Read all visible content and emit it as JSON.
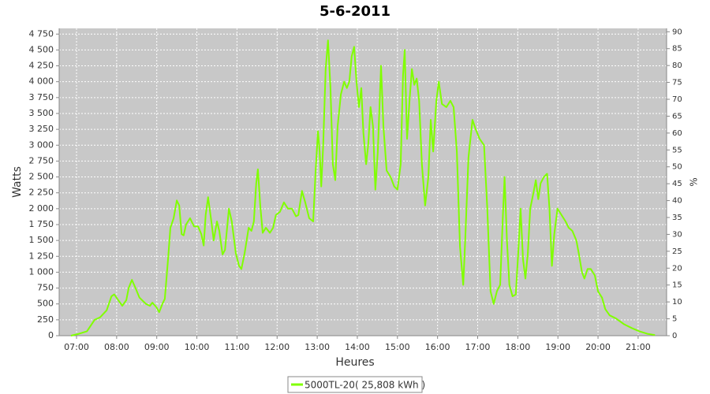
{
  "chart_data": {
    "type": "line",
    "title": "5-6-2011",
    "x_label": "Heures",
    "y_label": "Watts",
    "y2_label": "%",
    "grid": true,
    "legend": "bottom",
    "xlim": [
      6.567,
      21.71
    ],
    "xticks": [
      {
        "value": 7,
        "label": "07:00"
      },
      {
        "value": 8,
        "label": "08:00"
      },
      {
        "value": 9,
        "label": "09:00"
      },
      {
        "value": 10,
        "label": "10:00"
      },
      {
        "value": 11,
        "label": "11:00"
      },
      {
        "value": 12,
        "label": "12:00"
      },
      {
        "value": 13,
        "label": "13:00"
      },
      {
        "value": 14,
        "label": "14:00"
      },
      {
        "value": 15,
        "label": "15:00"
      },
      {
        "value": 16,
        "label": "16:00"
      },
      {
        "value": 17,
        "label": "17:00"
      },
      {
        "value": 18,
        "label": "18:00"
      },
      {
        "value": 19,
        "label": "19:00"
      },
      {
        "value": 20,
        "label": "20:00"
      },
      {
        "value": 21,
        "label": "21:00"
      }
    ],
    "ylim": [
      0,
      4840
    ],
    "yticks": [
      0,
      250,
      500,
      750,
      {
        "value": 1000,
        "label": "1 000"
      },
      {
        "value": 1250,
        "label": "1 250"
      },
      {
        "value": 1500,
        "label": "1 500"
      },
      {
        "value": 1750,
        "label": "1 750"
      },
      {
        "value": 2000,
        "label": "2 000"
      },
      {
        "value": 2250,
        "label": "2 250"
      },
      {
        "value": 2500,
        "label": "2 500"
      },
      {
        "value": 2750,
        "label": "2 750"
      },
      {
        "value": 3000,
        "label": "3 000"
      },
      {
        "value": 3250,
        "label": "3 250"
      },
      {
        "value": 3500,
        "label": "3 500"
      },
      {
        "value": 3750,
        "label": "3 750"
      },
      {
        "value": 4000,
        "label": "4 000"
      },
      {
        "value": 4250,
        "label": "4 250"
      },
      {
        "value": 4500,
        "label": "4 500"
      },
      {
        "value": 4750,
        "label": "4 750"
      }
    ],
    "y2lim": [
      0,
      91
    ],
    "y2ticks": [
      0,
      5,
      10,
      15,
      20,
      25,
      30,
      35,
      40,
      45,
      50,
      55,
      60,
      65,
      70,
      75,
      80,
      85,
      90
    ],
    "x": [
      6.86,
      7.06,
      7.26,
      7.45,
      7.59,
      7.75,
      7.87,
      7.94,
      8.04,
      8.14,
      8.24,
      8.3,
      8.38,
      8.47,
      8.57,
      8.73,
      8.83,
      8.89,
      8.99,
      9.06,
      9.14,
      9.2,
      9.28,
      9.34,
      9.42,
      9.5,
      9.56,
      9.62,
      9.67,
      9.73,
      9.83,
      9.93,
      10.03,
      10.11,
      10.17,
      10.22,
      10.28,
      10.36,
      10.42,
      10.5,
      10.56,
      10.64,
      10.7,
      10.8,
      10.87,
      10.97,
      11.05,
      11.11,
      11.19,
      11.29,
      11.36,
      11.42,
      11.48,
      11.52,
      11.58,
      11.64,
      11.72,
      11.82,
      11.9,
      11.97,
      12.07,
      12.17,
      12.27,
      12.37,
      12.47,
      12.53,
      12.62,
      12.7,
      12.8,
      12.9,
      12.96,
      13.02,
      13.06,
      13.1,
      13.15,
      13.21,
      13.27,
      13.33,
      13.39,
      13.45,
      13.51,
      13.59,
      13.67,
      13.74,
      13.8,
      13.86,
      13.92,
      13.98,
      14.04,
      14.1,
      14.15,
      14.22,
      14.27,
      14.33,
      14.39,
      14.45,
      14.51,
      14.59,
      14.65,
      14.73,
      14.83,
      14.92,
      15.0,
      15.08,
      15.14,
      15.18,
      15.24,
      15.3,
      15.36,
      15.42,
      15.48,
      15.54,
      15.61,
      15.69,
      15.77,
      15.83,
      15.89,
      15.97,
      16.03,
      16.11,
      16.22,
      16.32,
      16.4,
      16.48,
      16.56,
      16.64,
      16.69,
      16.77,
      16.87,
      16.95,
      17.05,
      17.16,
      17.24,
      17.32,
      17.4,
      17.48,
      17.56,
      17.63,
      17.67,
      17.73,
      17.79,
      17.87,
      17.95,
      18.01,
      18.07,
      18.13,
      18.19,
      18.25,
      18.31,
      18.39,
      18.45,
      18.51,
      18.57,
      18.65,
      18.73,
      18.79,
      18.85,
      18.91,
      18.99,
      19.09,
      19.19,
      19.27,
      19.36,
      19.46,
      19.52,
      19.6,
      19.66,
      19.74,
      19.82,
      19.92,
      20.0,
      20.1,
      20.18,
      20.29,
      20.45,
      20.65,
      20.84,
      21.03,
      21.23,
      21.42
    ],
    "series": [
      {
        "name": "5000TL-20( 25,808 kWh )",
        "color": "#80ff00",
        "values": [
          0,
          30,
          70,
          250,
          290,
          400,
          620,
          650,
          560,
          470,
          560,
          750,
          880,
          750,
          600,
          500,
          470,
          520,
          450,
          370,
          500,
          580,
          1200,
          1700,
          1850,
          2130,
          2050,
          1600,
          1580,
          1750,
          1850,
          1720,
          1720,
          1600,
          1420,
          1900,
          2180,
          1800,
          1500,
          1800,
          1650,
          1280,
          1350,
          2000,
          1800,
          1300,
          1100,
          1050,
          1300,
          1700,
          1650,
          1800,
          2400,
          2620,
          2050,
          1620,
          1700,
          1620,
          1700,
          1900,
          1950,
          2100,
          2000,
          2000,
          1880,
          1900,
          2280,
          2100,
          1850,
          1800,
          2600,
          3220,
          2900,
          2350,
          3000,
          4200,
          4650,
          3900,
          2700,
          2450,
          3300,
          3800,
          4000,
          3900,
          4000,
          4400,
          4550,
          4000,
          3600,
          3900,
          3200,
          2700,
          3000,
          3600,
          3300,
          2300,
          2900,
          4250,
          3300,
          2600,
          2500,
          2350,
          2300,
          2700,
          4100,
          4500,
          3100,
          3700,
          4200,
          3950,
          4050,
          3700,
          2700,
          2050,
          2500,
          3400,
          2900,
          3700,
          4000,
          3650,
          3600,
          3700,
          3600,
          2900,
          1400,
          800,
          1500,
          2800,
          3400,
          3250,
          3100,
          3000,
          2000,
          700,
          500,
          700,
          800,
          1900,
          2500,
          1500,
          800,
          620,
          650,
          1300,
          2000,
          1200,
          900,
          1300,
          2000,
          2250,
          2450,
          2150,
          2400,
          2500,
          2550,
          2000,
          1100,
          1600,
          2000,
          1900,
          1800,
          1700,
          1650,
          1500,
          1300,
          1000,
          900,
          1050,
          1050,
          950,
          700,
          600,
          420,
          320,
          270,
          180,
          120,
          70,
          30,
          10
        ]
      }
    ]
  }
}
